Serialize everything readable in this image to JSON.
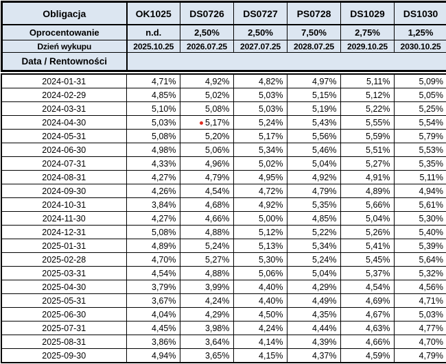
{
  "colors": {
    "header_bg": "#dce6f1",
    "data_bg": "#ffffff",
    "border": "#000000",
    "marker_red": "#e02b20"
  },
  "chart_data": {
    "type": "table",
    "header": {
      "obligacja_label": "Obligacja",
      "bonds": [
        "OK1025",
        "DS0726",
        "DS0727",
        "PS0728",
        "DS1029",
        "DS1030"
      ],
      "oprocentowanie_label": "Oprocentowanie",
      "oprocentowanie_values": [
        "n.d.",
        "2,50%",
        "2,50%",
        "7,50%",
        "2,75%",
        "1,25%"
      ],
      "dzien_wykupu_label": "Dzień wykupu",
      "dzien_wykupu_values": [
        "2025.10.25",
        "2026.07.25",
        "2027.07.25",
        "2028.07.25",
        "2029.10.25",
        "2030.10.25"
      ],
      "data_rentownosci_label": "Data / Rentowności"
    },
    "rows": [
      {
        "date": "2024-01-31",
        "values": [
          "4,71%",
          "4,92%",
          "4,82%",
          "4,97%",
          "5,11%",
          "5,09%"
        ]
      },
      {
        "date": "2024-02-29",
        "values": [
          "4,85%",
          "5,02%",
          "5,03%",
          "5,15%",
          "5,12%",
          "5,05%"
        ]
      },
      {
        "date": "2024-03-31",
        "values": [
          "5,10%",
          "5,08%",
          "5,03%",
          "5,19%",
          "5,22%",
          "5,25%"
        ]
      },
      {
        "date": "2024-04-30",
        "values": [
          "5,03%",
          "5,17%",
          "5,24%",
          "5,43%",
          "5,55%",
          "5,54%"
        ],
        "marker_col": 1
      },
      {
        "date": "2024-05-31",
        "values": [
          "5,08%",
          "5,20%",
          "5,17%",
          "5,56%",
          "5,59%",
          "5,79%"
        ]
      },
      {
        "date": "2024-06-30",
        "values": [
          "4,98%",
          "5,06%",
          "5,34%",
          "5,46%",
          "5,51%",
          "5,53%"
        ]
      },
      {
        "date": "2024-07-31",
        "values": [
          "4,33%",
          "4,96%",
          "5,02%",
          "5,04%",
          "5,27%",
          "5,35%"
        ]
      },
      {
        "date": "2024-08-31",
        "values": [
          "4,27%",
          "4,79%",
          "4,95%",
          "4,92%",
          "4,91%",
          "5,11%"
        ]
      },
      {
        "date": "2024-09-30",
        "values": [
          "4,26%",
          "4,54%",
          "4,72%",
          "4,79%",
          "4,89%",
          "4,94%"
        ]
      },
      {
        "date": "2024-10-31",
        "values": [
          "3,84%",
          "4,68%",
          "4,92%",
          "5,35%",
          "5,66%",
          "5,61%"
        ]
      },
      {
        "date": "2024-11-30",
        "values": [
          "4,27%",
          "4,66%",
          "5,00%",
          "4,85%",
          "5,04%",
          "5,30%"
        ]
      },
      {
        "date": "2024-12-31",
        "values": [
          "5,08%",
          "4,88%",
          "5,12%",
          "5,22%",
          "5,26%",
          "5,40%"
        ]
      },
      {
        "date": "2025-01-31",
        "values": [
          "4,89%",
          "5,24%",
          "5,13%",
          "5,34%",
          "5,41%",
          "5,39%"
        ]
      },
      {
        "date": "2025-02-28",
        "values": [
          "4,70%",
          "5,27%",
          "5,30%",
          "5,24%",
          "5,45%",
          "5,64%"
        ]
      },
      {
        "date": "2025-03-31",
        "values": [
          "4,54%",
          "4,88%",
          "5,06%",
          "5,04%",
          "5,37%",
          "5,32%"
        ]
      },
      {
        "date": "2025-04-30",
        "values": [
          "3,79%",
          "3,99%",
          "4,40%",
          "4,29%",
          "4,54%",
          "4,56%"
        ]
      },
      {
        "date": "2025-05-31",
        "values": [
          "3,67%",
          "4,24%",
          "4,40%",
          "4,49%",
          "4,69%",
          "4,71%"
        ]
      },
      {
        "date": "2025-06-30",
        "values": [
          "4,04%",
          "4,29%",
          "4,50%",
          "4,35%",
          "4,67%",
          "5,03%"
        ]
      },
      {
        "date": "2025-07-31",
        "values": [
          "4,45%",
          "3,98%",
          "4,24%",
          "4,44%",
          "4,63%",
          "4,77%"
        ]
      },
      {
        "date": "2025-08-31",
        "values": [
          "3,86%",
          "3,64%",
          "4,14%",
          "4,39%",
          "4,66%",
          "4,70%"
        ]
      },
      {
        "date": "2025-09-30",
        "values": [
          "4,94%",
          "3,65%",
          "4,15%",
          "4,37%",
          "4,59%",
          "4,79%"
        ]
      }
    ]
  }
}
